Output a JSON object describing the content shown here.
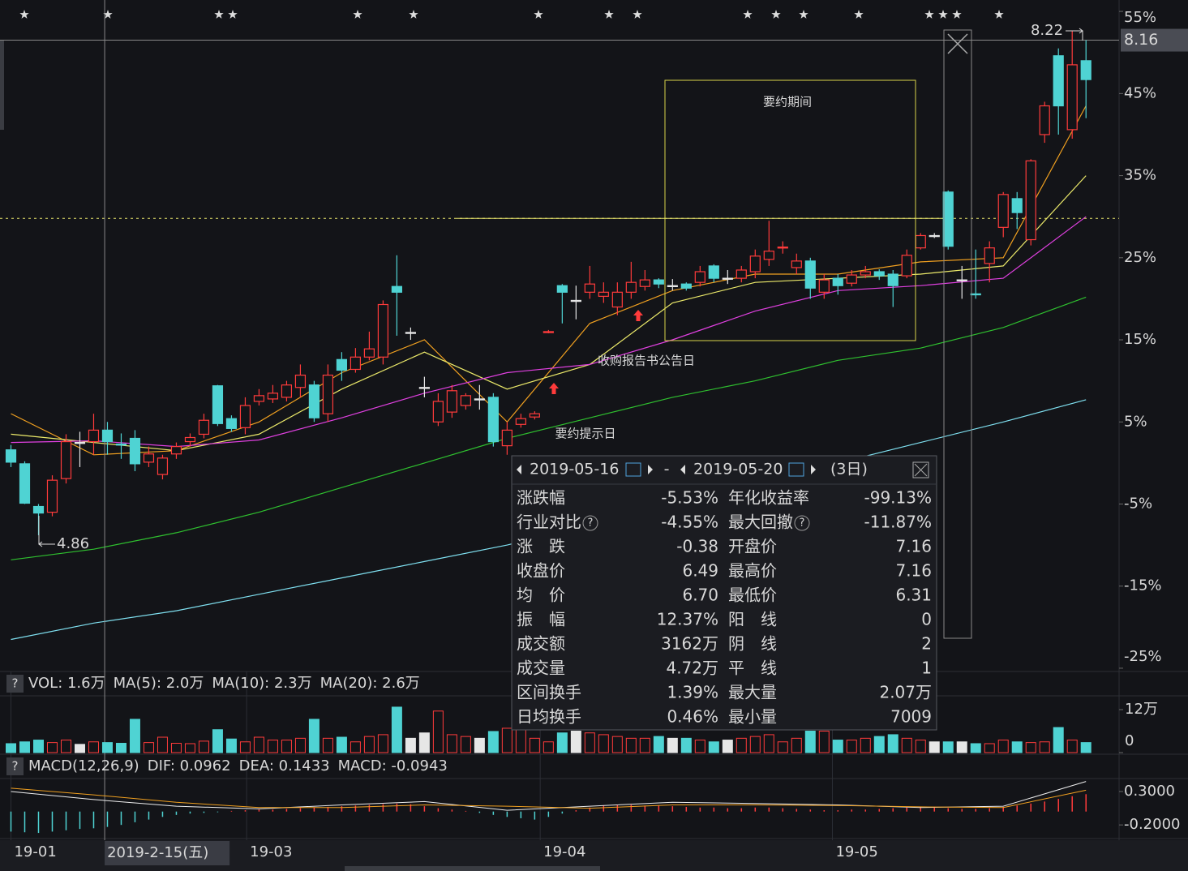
{
  "chart_data": {
    "type": "candlestick",
    "xlim": [
      -0.5,
      80.4
    ],
    "ylim": [
      -25.4,
      55.9
    ],
    "yticks": [
      {
        "value": 55,
        "label": "55%"
      },
      {
        "value": 45,
        "label": "45%"
      },
      {
        "value": 35,
        "label": "35%"
      },
      {
        "value": 25,
        "label": "25%"
      },
      {
        "value": 15,
        "label": "15%"
      },
      {
        "value": 5,
        "label": "5%"
      },
      {
        "value": -5,
        "label": "-5%"
      },
      {
        "value": -15,
        "label": "-15%"
      },
      {
        "value": -25,
        "label": "-25%"
      }
    ],
    "xticks": [
      {
        "value": 0,
        "label": "19-01"
      },
      {
        "value": 17.1,
        "label": "19-03"
      },
      {
        "value": 38.4,
        "label": "19-04"
      },
      {
        "value": 59.6,
        "label": "19-05"
      }
    ],
    "up_color": "#ff3b3b",
    "down_color": "#4fd3d3",
    "flat_color": "#e6e6e6",
    "open": [
      1.6,
      -0.1,
      -5.3,
      -6.0,
      -1.9,
      2.5,
      2.6,
      4.0,
      2.3,
      3.0,
      0.1,
      -1.4,
      1.1,
      2.6,
      3.5,
      9.4,
      5.4,
      4.3,
      7.5,
      7.8,
      8.0,
      9.2,
      9.5,
      6.0,
      12.6,
      11.4,
      12.9,
      12.9,
      21.5,
      15.9,
      9.2,
      5.0,
      6.2,
      7.0,
      7.8,
      8.0,
      2.1,
      4.7,
      5.6,
      15.9,
      21.6,
      19.8,
      20.8,
      20.3,
      19.0,
      20.8,
      21.5,
      22.3,
      21.6,
      21.8,
      22.0,
      24.0,
      22.5,
      22.5,
      23.3,
      24.8,
      26.2,
      23.8,
      24.6,
      20.8,
      22.5,
      21.9,
      22.9,
      23.3,
      23.0,
      22.8,
      26.2,
      27.7,
      33.0,
      22.3,
      20.6,
      24.3,
      28.7,
      32.2,
      27.2,
      40.0,
      49.6,
      40.6,
      49.0
    ],
    "close": [
      0.1,
      -4.9,
      -6.1,
      -2.1,
      2.6,
      2.5,
      4.0,
      2.6,
      2.2,
      -0.1,
      1.1,
      0.6,
      2.0,
      3.1,
      5.2,
      4.8,
      4.2,
      7.0,
      8.2,
      8.5,
      9.5,
      10.7,
      5.5,
      10.7,
      11.3,
      12.9,
      13.9,
      19.3,
      20.8,
      15.9,
      9.2,
      7.5,
      8.8,
      8.2,
      7.8,
      2.6,
      4.0,
      5.4,
      6.0,
      16.0,
      20.8,
      19.8,
      21.8,
      20.8,
      20.8,
      22.0,
      22.3,
      21.8,
      21.6,
      21.3,
      23.3,
      22.5,
      22.5,
      23.5,
      25.2,
      25.8,
      26.3,
      24.6,
      21.3,
      22.3,
      21.6,
      22.9,
      23.3,
      22.8,
      21.6,
      25.3,
      27.7,
      27.7,
      26.4,
      22.3,
      20.5,
      26.2,
      32.7,
      30.5,
      36.8,
      43.5,
      43.5,
      48.5,
      46.7
    ],
    "high": [
      2.2,
      0.2,
      -5.0,
      -1.5,
      3.5,
      3.8,
      6.0,
      5.0,
      3.6,
      4.0,
      2.0,
      1.0,
      2.5,
      3.6,
      6.0,
      9.5,
      5.8,
      8.0,
      9.0,
      9.5,
      10.0,
      12.0,
      10.0,
      12.0,
      13.5,
      14.0,
      16.0,
      19.8,
      25.3,
      16.5,
      10.5,
      8.5,
      9.5,
      8.5,
      9.5,
      8.5,
      5.0,
      6.0,
      6.3,
      16.2,
      21.8,
      21.6,
      24.0,
      22.0,
      22.0,
      24.5,
      23.5,
      22.5,
      22.4,
      22.0,
      24.0,
      24.2,
      23.5,
      24.0,
      26.0,
      29.5,
      27.0,
      25.5,
      25.0,
      23.0,
      23.0,
      23.5,
      24.0,
      23.6,
      23.5,
      26.0,
      28.0,
      28.0,
      33.2,
      24.0,
      26.0,
      27.0,
      33.0,
      33.0,
      37.0,
      44.0,
      50.5,
      52.6,
      51.5
    ],
    "low": [
      -0.5,
      -5.0,
      -8.8,
      -6.5,
      -2.5,
      -0.5,
      1.0,
      1.0,
      0.5,
      -1.0,
      -0.5,
      -2.0,
      0.5,
      2.0,
      3.0,
      4.5,
      3.8,
      3.5,
      7.0,
      7.3,
      7.5,
      8.0,
      5.0,
      5.0,
      10.0,
      11.0,
      12.5,
      12.0,
      15.5,
      15.0,
      8.0,
      4.5,
      5.5,
      6.5,
      6.5,
      2.0,
      1.0,
      4.3,
      5.3,
      15.8,
      17.0,
      17.5,
      20.0,
      19.5,
      18.0,
      20.0,
      21.0,
      21.3,
      21.0,
      21.0,
      21.5,
      22.0,
      21.8,
      22.0,
      22.5,
      24.0,
      25.5,
      23.0,
      20.0,
      20.0,
      20.5,
      21.5,
      22.5,
      22.3,
      19.0,
      22.5,
      26.0,
      27.4,
      26.0,
      20.0,
      20.0,
      22.0,
      27.5,
      28.5,
      26.5,
      39.0,
      40.0,
      39.5,
      42.0
    ],
    "lines": {
      "x": [
        0,
        6,
        12,
        18,
        24,
        30,
        36,
        42,
        48,
        54,
        60,
        66,
        72,
        78
      ],
      "series": [
        {
          "color": "#f0a020",
          "values": [
            6,
            1,
            1.5,
            5,
            11,
            15,
            5,
            17,
            21,
            23,
            23,
            24.5,
            25,
            43.5
          ]
        },
        {
          "color": "#ecea6a",
          "values": [
            3.5,
            2.5,
            1.5,
            3.5,
            9,
            13.5,
            9,
            12,
            19.5,
            22,
            22.5,
            23,
            24,
            35
          ]
        },
        {
          "color": "#e040e0",
          "values": [
            2.5,
            2.7,
            2,
            2.8,
            5.5,
            8.5,
            11,
            12,
            15,
            18.5,
            21,
            21.6,
            22.5,
            30
          ]
        },
        {
          "color": "#2fc02f",
          "values": [
            -11.8,
            -10.5,
            -8.5,
            -6,
            -3,
            0,
            3,
            5.5,
            8,
            10,
            12.5,
            14,
            16.5,
            20.2
          ]
        },
        {
          "color": "#7fe0f0",
          "values": [
            -21.5,
            -19.5,
            -18,
            -16,
            -14,
            -12,
            -10,
            -7.5,
            -5,
            -2.5,
            0,
            2.5,
            5,
            7.7
          ]
        }
      ]
    },
    "ref_line": 29.8,
    "crosshair_x": {
      "value": 6.8,
      "label": "2019-2-15(五)"
    },
    "crosshair_y": 51.5,
    "price_tag": "8.16",
    "high_label": "8.22",
    "low_label": "4.86",
    "annotations": [
      "要约期间",
      "收购报告书公告日",
      "要约提示日"
    ],
    "volume": {
      "header": [
        {
          "text": "VOL: 1.6万",
          "color": "#e6e6e6"
        },
        {
          "text": "MA(5): 2.0万",
          "color": "#e6e6e6"
        },
        {
          "text": "MA(10): 2.3万",
          "color": "#f0a020"
        },
        {
          "text": "MA(20): 2.6万",
          "color": "#e040e0"
        }
      ],
      "ylim": [
        0,
        15.4
      ],
      "yticks": [
        {
          "value": 12,
          "label": "12万"
        },
        0
      ],
      "values": [
        2.5,
        3.0,
        3.5,
        2.8,
        3.5,
        2.3,
        3.0,
        2.8,
        2.6,
        9.3,
        2.8,
        4.3,
        2.6,
        2.5,
        3.2,
        6.4,
        3.8,
        3.0,
        4.3,
        3.5,
        3.5,
        4.0,
        9.3,
        4.0,
        4.3,
        3.0,
        4.5,
        5.0,
        12.7,
        4.0,
        5.5,
        11.6,
        5.0,
        4.5,
        4.0,
        5.9,
        6.8,
        7.0,
        4.0,
        3.0,
        5.5,
        6.0,
        5.5,
        5.0,
        4.5,
        4.0,
        4.0,
        4.5,
        4.0,
        4.0,
        3.5,
        3.0,
        3.5,
        4.0,
        4.5,
        5.0,
        3.0,
        4.0,
        6.0,
        6.0,
        3.5,
        3.5,
        4.0,
        4.5,
        5.0,
        4.0,
        3.5,
        3.0,
        3.0,
        3.0,
        2.5,
        2.5,
        3.5,
        3.0,
        2.8,
        3.0,
        7.0,
        3.5,
        2.8
      ]
    },
    "macd": {
      "header": [
        {
          "text": "MACD(12,26,9)",
          "color": "#e6e6e6"
        },
        {
          "text": "DIF: 0.0962",
          "color": "#e6e6e6"
        },
        {
          "text": "DEA: 0.1433",
          "color": "#f0a020"
        },
        {
          "text": "MACD: -0.0943",
          "color": "#4fd3d3"
        }
      ],
      "ylim": [
        -0.38,
        0.47
      ],
      "yticks": [
        {
          "value": 0.3,
          "label": "0.3000"
        },
        {
          "value": -0.2,
          "label": "-0.2000"
        }
      ],
      "values": [
        -0.3,
        -0.31,
        -0.32,
        -0.3,
        -0.28,
        -0.26,
        -0.25,
        -0.23,
        -0.2,
        -0.16,
        -0.12,
        -0.08,
        -0.05,
        -0.03,
        -0.02,
        -0.01,
        0.01,
        0.02,
        0.03,
        0.03,
        0.04,
        0.05,
        0.06,
        0.07,
        0.08,
        0.09,
        0.1,
        0.11,
        0.12,
        0.11,
        0.08,
        0.05,
        0.03,
        0.01,
        -0.02,
        -0.05,
        -0.08,
        -0.1,
        -0.12,
        -0.08,
        -0.03,
        0.02,
        0.06,
        0.09,
        0.1,
        0.1,
        0.09,
        0.09,
        0.08,
        0.07,
        0.06,
        0.06,
        0.05,
        0.05,
        0.06,
        0.06,
        0.05,
        0.04,
        0.03,
        0.02,
        0.02,
        0.03,
        0.03,
        0.04,
        0.05,
        0.06,
        0.07,
        0.06,
        0.05,
        0.04,
        0.04,
        0.05,
        0.07,
        0.09,
        0.12,
        0.15,
        0.19,
        0.23,
        0.26
      ],
      "dif": [
        0.3,
        0.18,
        0.08,
        0.04,
        0.1,
        0.15,
        0.02,
        0.08,
        0.14,
        0.12,
        0.1,
        0.06,
        0.08,
        0.45
      ],
      "dea": [
        0.35,
        0.25,
        0.14,
        0.06,
        0.06,
        0.1,
        0.08,
        0.05,
        0.1,
        0.1,
        0.09,
        0.07,
        0.06,
        0.32
      ]
    },
    "range_stats": {
      "start": "2019-05-16",
      "separator": "-",
      "end": "2019-05-20",
      "days": "(3日)",
      "rows": [
        {
          "cells": [
            "涨跌幅",
            "-5.53%",
            "年化收益率",
            "-99.13%"
          ],
          "colors": [
            "#3bd15a",
            "#3bd15a"
          ],
          "help": false
        },
        {
          "cells": [
            "行业对比",
            "-4.55%",
            "最大回撤",
            "-11.87%"
          ],
          "colors": [
            "#3bd15a",
            "#3bd15a"
          ],
          "help": true
        },
        {
          "cells": [
            "涨　跌",
            "-0.38",
            "开盘价",
            "7.16"
          ],
          "colors": [
            "#3bd15a",
            "#3bd15a"
          ],
          "help": false
        },
        {
          "cells": [
            "收盘价",
            "6.49",
            "最高价",
            "7.16"
          ],
          "colors": [
            "#3bd15a",
            "#3bd15a"
          ],
          "help": false
        },
        {
          "cells": [
            "均　价",
            "6.70",
            "最低价",
            "6.31"
          ],
          "colors": [
            "#3bd15a",
            "#3bd15a"
          ],
          "help": false
        },
        {
          "cells": [
            "振　幅",
            "12.37%",
            "阳　线",
            "0"
          ],
          "colors": [
            "#ff3b3b",
            "#ff3b3b"
          ],
          "help": false
        },
        {
          "cells": [
            "成交额",
            "3162万",
            "阴　线",
            "2"
          ],
          "colors": [
            "#e6e6e6",
            "#3bd15a"
          ],
          "help": false
        },
        {
          "cells": [
            "成交量",
            "4.72万",
            "平　线",
            "1"
          ],
          "colors": [
            "#e6e6e6",
            "#e6e6e6"
          ],
          "help": false
        },
        {
          "cells": [
            "区间换手",
            "1.39%",
            "最大量",
            "2.07万"
          ],
          "colors": [
            "#e6e6e6",
            "#e6e6e6"
          ],
          "help": false
        },
        {
          "cells": [
            "日均换手",
            "0.46%",
            "最小量",
            "7009"
          ],
          "colors": [
            "#e6e6e6",
            "#e6e6e6"
          ],
          "help": false
        }
      ]
    }
  }
}
